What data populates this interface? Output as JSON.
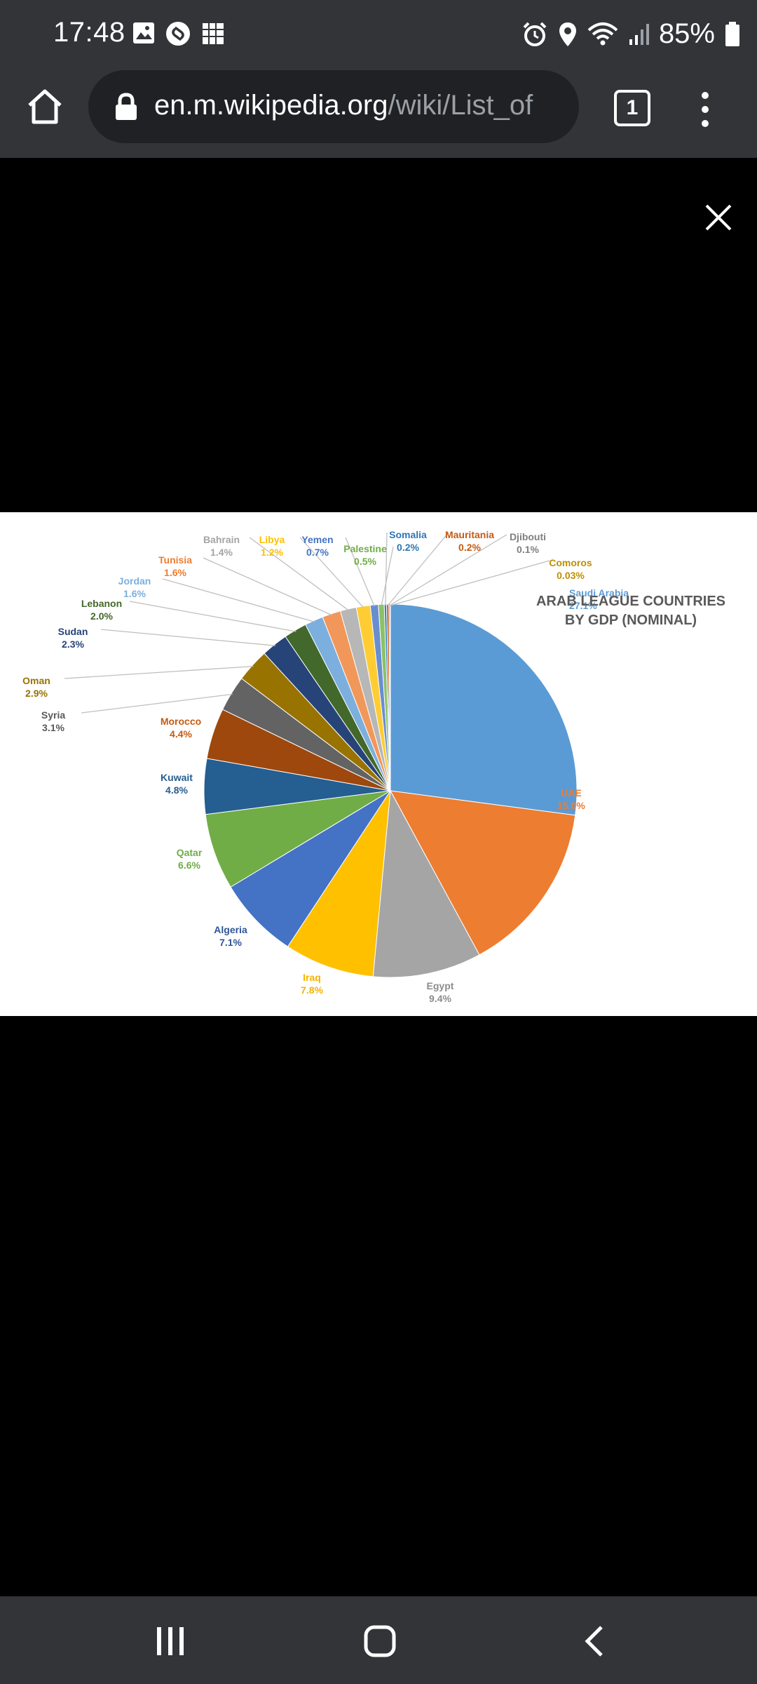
{
  "status_bar": {
    "time": "17:48",
    "battery_percent": "85%",
    "icons_left": [
      "gallery-icon",
      "shazam-icon",
      "app-icon"
    ],
    "icons_right": [
      "alarm-icon",
      "location-icon",
      "wifi-icon",
      "signal-icon",
      "battery-icon"
    ]
  },
  "browser": {
    "url_domain": "en.m.wikipedia.org",
    "url_path": "/wiki/List_of",
    "tab_count": "1"
  },
  "chart_data": {
    "type": "pie",
    "title_line1": "ARAB LEAGUE COUNTRIES",
    "title_line2": "BY GDP (NOMINAL)",
    "slices": [
      {
        "name": "Saudi Arabia",
        "label": "27.1%",
        "value": 27.1,
        "color": "#5B9BD5",
        "text_color": "#5B9BD5"
      },
      {
        "name": "UAE",
        "label": "15.0%",
        "value": 15.0,
        "color": "#ED7D31",
        "text_color": "#ED7D31"
      },
      {
        "name": "Egypt",
        "label": "9.4%",
        "value": 9.4,
        "color": "#A5A5A5",
        "text_color": "#8c8c8c"
      },
      {
        "name": "Iraq",
        "label": "7.8%",
        "value": 7.8,
        "color": "#FFC000",
        "text_color": "#F4B400"
      },
      {
        "name": "Algeria",
        "label": "7.1%",
        "value": 7.1,
        "color": "#4472C4",
        "text_color": "#2F5597"
      },
      {
        "name": "Qatar",
        "label": "6.6%",
        "value": 6.6,
        "color": "#70AD47",
        "text_color": "#70AD47"
      },
      {
        "name": "Kuwait",
        "label": "4.8%",
        "value": 4.8,
        "color": "#255E91",
        "text_color": "#255E91"
      },
      {
        "name": "Morocco",
        "label": "4.4%",
        "value": 4.4,
        "color": "#9E480E",
        "text_color": "#C55A11"
      },
      {
        "name": "Syria",
        "label": "3.1%",
        "value": 3.1,
        "color": "#636363",
        "text_color": "#595959"
      },
      {
        "name": "Oman",
        "label": "2.9%",
        "value": 2.9,
        "color": "#997300",
        "text_color": "#997300"
      },
      {
        "name": "Sudan",
        "label": "2.3%",
        "value": 2.3,
        "color": "#264478",
        "text_color": "#264478"
      },
      {
        "name": "Lebanon",
        "label": "2.0%",
        "value": 2.0,
        "color": "#43682B",
        "text_color": "#43682B"
      },
      {
        "name": "Jordan",
        "label": "1.6%",
        "value": 1.6,
        "color": "#7CAFDD",
        "text_color": "#7CAFDD"
      },
      {
        "name": "Tunisia",
        "label": "1.6%",
        "value": 1.6,
        "color": "#F1975A",
        "text_color": "#ED7D31"
      },
      {
        "name": "Bahrain",
        "label": "1.4%",
        "value": 1.4,
        "color": "#B7B7B7",
        "text_color": "#A5A5A5"
      },
      {
        "name": "Libya",
        "label": "1.2%",
        "value": 1.2,
        "color": "#FFCD33",
        "text_color": "#FFC000"
      },
      {
        "name": "Yemen",
        "label": "0.7%",
        "value": 0.7,
        "color": "#698ED0",
        "text_color": "#4472C4"
      },
      {
        "name": "Palestine",
        "label": "0.5%",
        "value": 0.5,
        "color": "#8CC168",
        "text_color": "#70AD47"
      },
      {
        "name": "Somalia",
        "label": "0.2%",
        "value": 0.2,
        "color": "#327DC2",
        "text_color": "#2E75B6"
      },
      {
        "name": "Mauritania",
        "label": "0.2%",
        "value": 0.2,
        "color": "#D26012",
        "text_color": "#C55A11"
      },
      {
        "name": "Djibouti",
        "label": "0.1%",
        "value": 0.1,
        "color": "#848484",
        "text_color": "#7f7f7f"
      },
      {
        "name": "Comoros",
        "label": "0.03%",
        "value": 0.03,
        "color": "#CC9A00",
        "text_color": "#BF8F00"
      }
    ]
  },
  "nav": {
    "recents": "recents-icon",
    "home": "home-icon",
    "back": "back-icon"
  }
}
